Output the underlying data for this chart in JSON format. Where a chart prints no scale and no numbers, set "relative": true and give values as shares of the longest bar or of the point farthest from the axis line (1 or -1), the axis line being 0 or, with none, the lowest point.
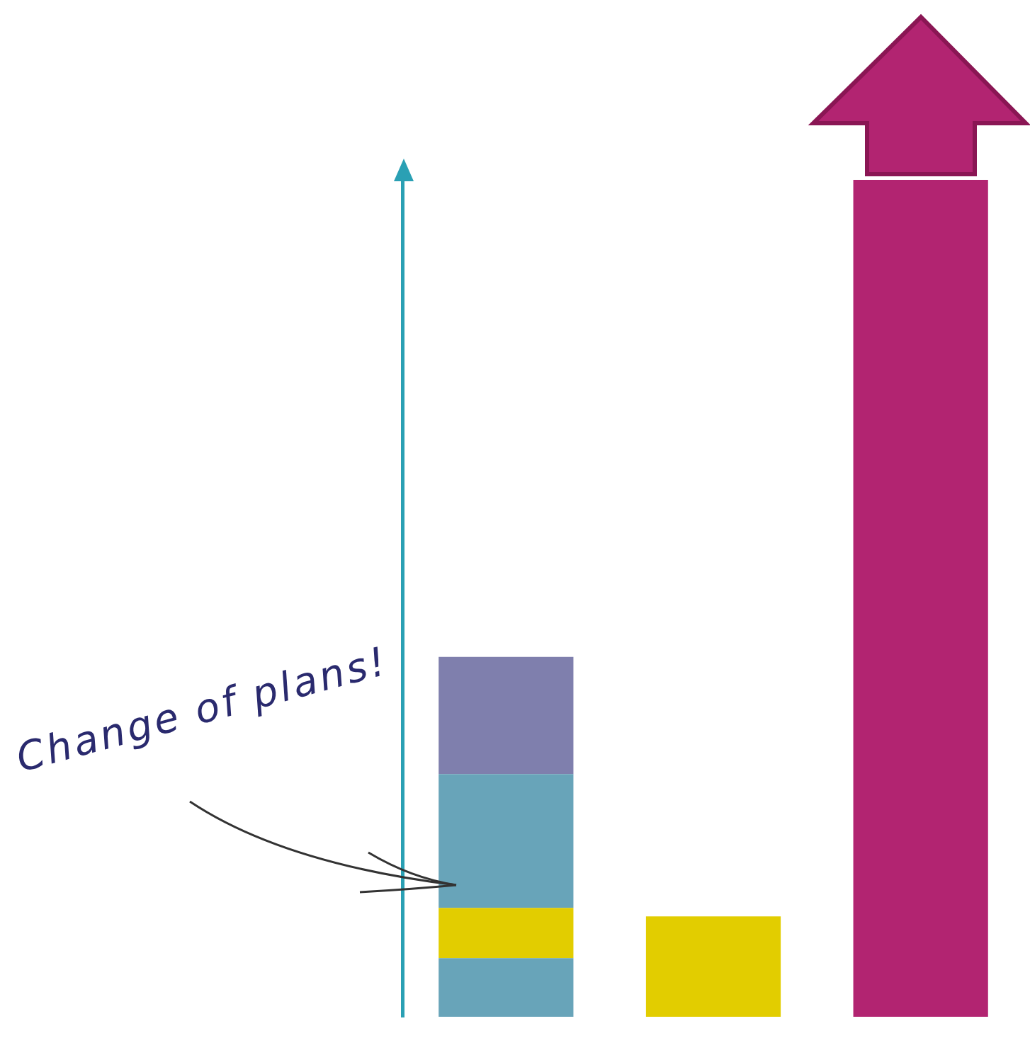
{
  "chart_data": {
    "type": "bar",
    "stacked": true,
    "relative": true,
    "categories": [
      null,
      null,
      null
    ],
    "series": [
      {
        "color": "#68a4b9",
        "values": [
          0.07,
          null,
          null
        ]
      },
      {
        "color": "#e2cd00",
        "values": [
          0.06,
          0.12,
          null
        ]
      },
      {
        "color": "#68a4b9",
        "values": [
          0.16,
          null,
          null
        ]
      },
      {
        "color": "#7f7fad",
        "values": [
          0.14,
          null,
          null
        ]
      },
      {
        "color": "#b22471",
        "values": [
          null,
          null,
          1
        ]
      }
    ],
    "annotations": [
      "Change of plans!"
    ]
  }
}
